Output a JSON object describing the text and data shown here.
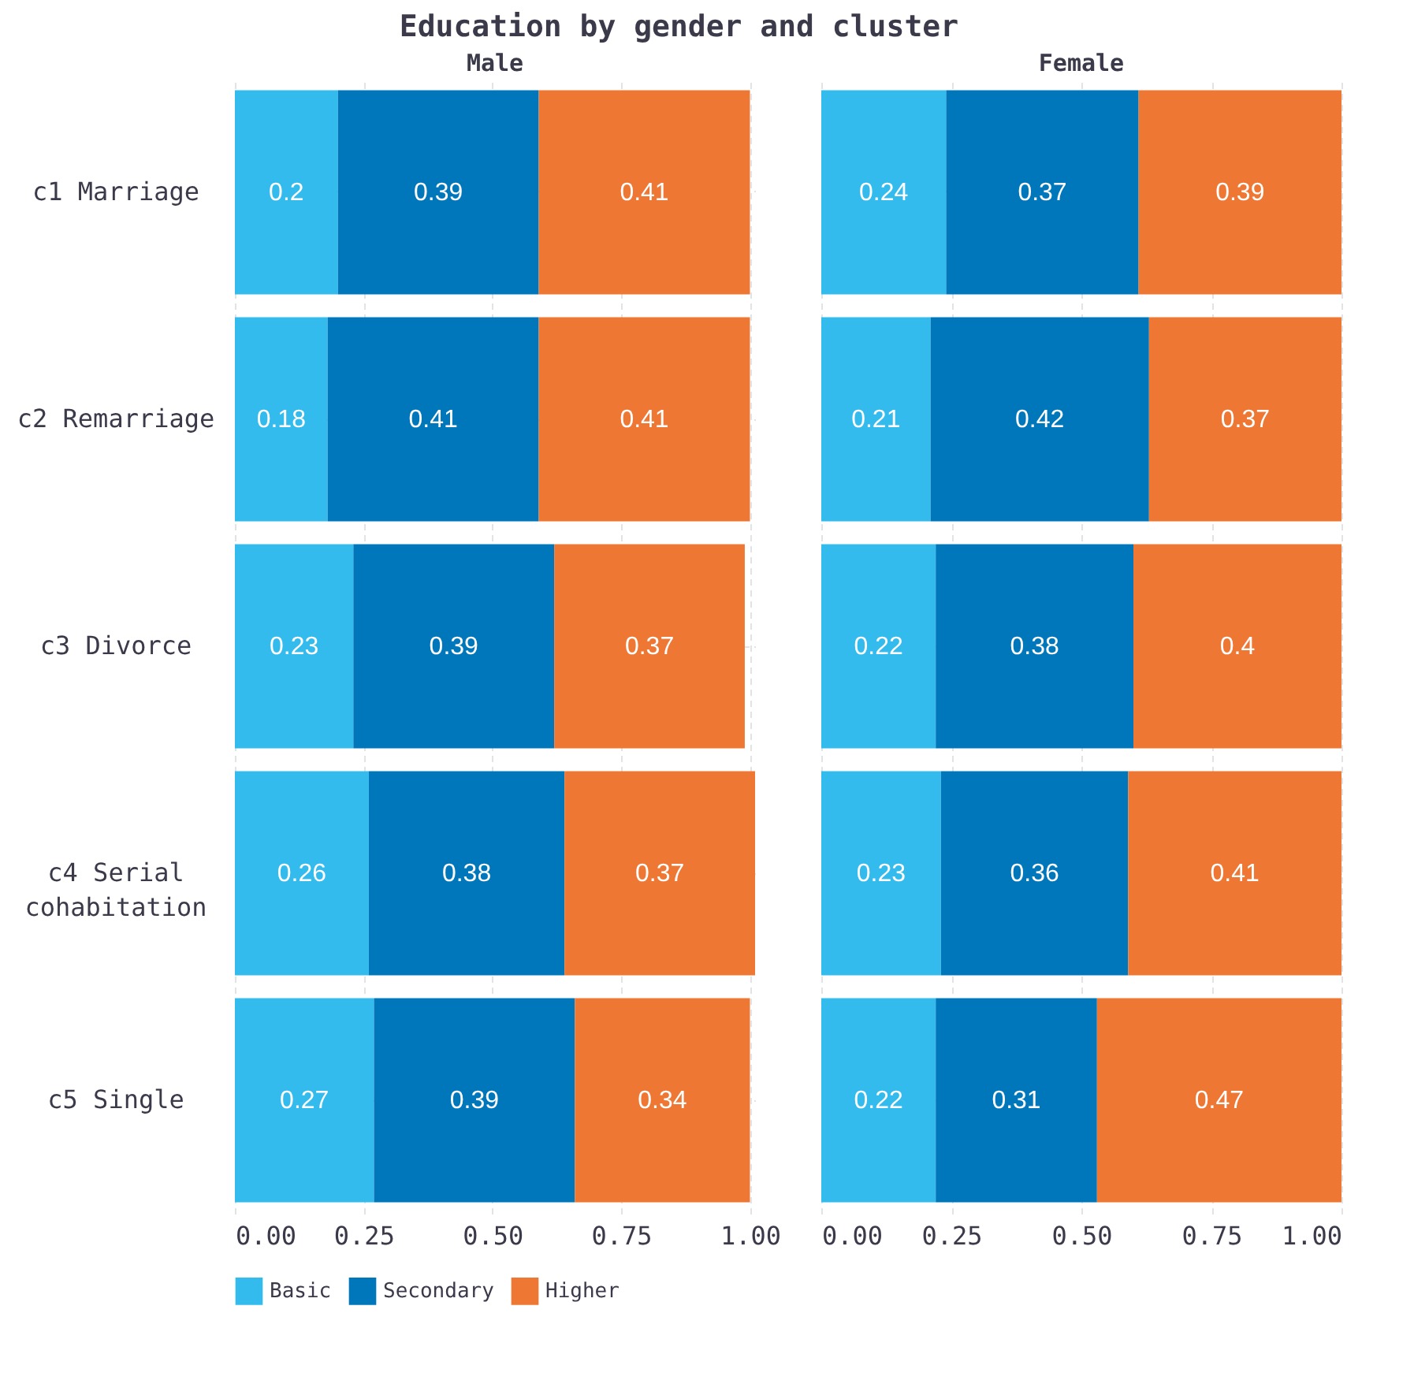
{
  "chart_data": [
    {
      "type": "bar",
      "title": "Education by gender and cluster",
      "subtitle": "Male",
      "orientation": "horizontal",
      "stacked": true,
      "data_labels": true,
      "grid": true,
      "legend": "bottom",
      "categories": [
        "c1 Marriage",
        "c2 Remarriage",
        "c3 Divorce",
        "c4 Serial cohabitation",
        "c5 Single"
      ],
      "xlim": [
        0,
        1.01
      ],
      "xticks": [
        {
          "value": 0,
          "label": "0.00"
        },
        {
          "value": 0.25,
          "label": "0.25"
        },
        {
          "value": 0.5,
          "label": "0.50"
        },
        {
          "value": 0.75,
          "label": "0.75"
        },
        {
          "value": 1,
          "label": "1.00"
        }
      ],
      "series": [
        {
          "name": "Basic",
          "color": "#33bbee",
          "values": [
            0.2,
            0.18,
            0.23,
            0.26,
            0.27
          ]
        },
        {
          "name": "Secondary",
          "color": "#0077bb",
          "values": [
            0.39,
            0.41,
            0.39,
            0.38,
            0.39
          ]
        },
        {
          "name": "Higher",
          "color": "#ee7733",
          "values": [
            0.41,
            0.41,
            0.37,
            0.37,
            0.34
          ]
        }
      ]
    },
    {
      "type": "bar",
      "subtitle": "Female",
      "orientation": "horizontal",
      "stacked": true,
      "data_labels": true,
      "grid": true,
      "legend": "bottom",
      "tick_labels": "x",
      "categories": [
        "c1 Marriage",
        "c2 Remarriage",
        "c3 Divorce",
        "c4 Serial cohabitation",
        "c5 Single"
      ],
      "xlim": [
        0,
        1
      ],
      "xticks": [
        {
          "value": 0,
          "label": "0.00"
        },
        {
          "value": 0.25,
          "label": "0.25"
        },
        {
          "value": 0.5,
          "label": "0.50"
        },
        {
          "value": 0.75,
          "label": "0.75"
        },
        {
          "value": 1,
          "label": "1.00"
        }
      ],
      "series": [
        {
          "name": "Basic",
          "color": "#33bbee",
          "values": [
            0.24,
            0.21,
            0.22,
            0.23,
            0.22
          ]
        },
        {
          "name": "Secondary",
          "color": "#0077bb",
          "values": [
            0.37,
            0.42,
            0.38,
            0.36,
            0.31
          ]
        },
        {
          "name": "Higher",
          "color": "#ee7733",
          "values": [
            0.39,
            0.37,
            0.4,
            0.41,
            0.47
          ]
        }
      ]
    }
  ]
}
